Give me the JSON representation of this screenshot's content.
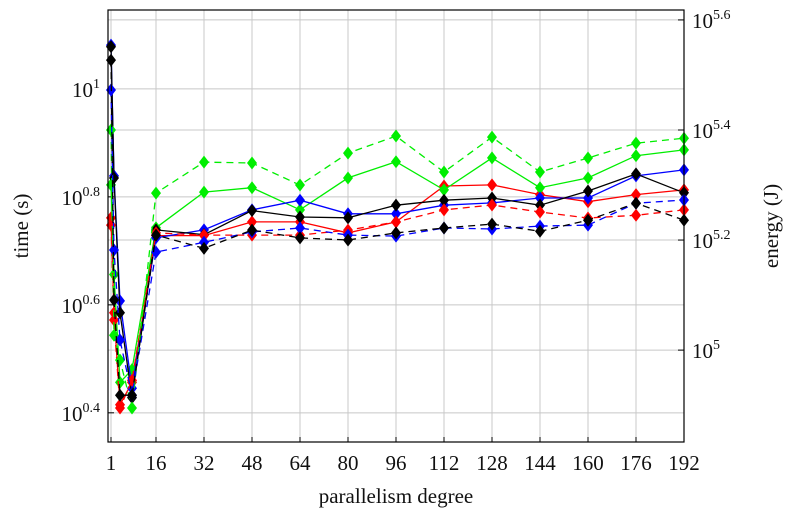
{
  "chart_data": {
    "type": "line",
    "xlabel": "parallelism degree",
    "ylabel": "time (s)",
    "y2label": "energy (J)",
    "x": [
      1,
      2,
      4,
      8,
      16,
      32,
      48,
      64,
      80,
      96,
      112,
      128,
      144,
      160,
      176,
      192
    ],
    "xlim": [
      0,
      192
    ],
    "xticks": [
      1,
      16,
      32,
      48,
      64,
      80,
      96,
      112,
      128,
      144,
      160,
      176,
      192
    ],
    "ylim": [
      2.218,
      14.0
    ],
    "ylog": true,
    "yticks": [
      {
        "value": 2.512,
        "label": "10^0.4"
      },
      {
        "value": 3.981,
        "label": "10^0.6"
      },
      {
        "value": 6.31,
        "label": "10^0.8"
      },
      {
        "value": 10,
        "label": "10^1"
      }
    ],
    "y2lim": [
      68080,
      415000
    ],
    "y2log": true,
    "y2ticks": [
      {
        "value": 100000,
        "label": "10^5"
      },
      {
        "value": 158489,
        "label": "10^5.2"
      },
      {
        "value": 251189,
        "label": "10^5.4"
      },
      {
        "value": 398107,
        "label": "10^5.6"
      }
    ],
    "grid": true,
    "series": [
      {
        "color": "#ff0000",
        "dashed": false,
        "axis": "y",
        "values": [
          5.77,
          3.85,
          2.6,
          2.86,
          5.35,
          5.35,
          5.67,
          5.67,
          5.41,
          5.67,
          6.61,
          6.64,
          6.37,
          6.18,
          6.37,
          6.5
        ]
      },
      {
        "color": "#00ee00",
        "dashed": false,
        "axis": "y",
        "values": [
          6.64,
          4.53,
          2.86,
          3.02,
          5.53,
          6.44,
          6.56,
          5.97,
          6.84,
          7.33,
          6.5,
          7.45,
          6.56,
          6.84,
          7.52,
          7.71
        ]
      },
      {
        "color": "#0000ff",
        "dashed": false,
        "axis": "y",
        "values": [
          12.05,
          6.9,
          4.05,
          2.79,
          5.3,
          5.48,
          5.97,
          6.22,
          5.87,
          5.87,
          6.09,
          6.15,
          6.28,
          6.28,
          6.9,
          7.08
        ]
      },
      {
        "color": "#000000",
        "dashed": false,
        "axis": "y",
        "values": [
          11.97,
          6.84,
          3.85,
          2.68,
          5.48,
          5.37,
          5.95,
          5.79,
          5.77,
          6.09,
          6.22,
          6.28,
          6.09,
          6.47,
          6.96,
          6.42
        ]
      },
      {
        "color": "#ff0000",
        "dashed": true,
        "axis": "y2",
        "values": [
          168700,
          113400,
          78500,
          88100,
          163300,
          161800,
          161800,
          161800,
          165200,
          170900,
          179800,
          183500,
          178200,
          173800,
          175800,
          179800
        ]
      },
      {
        "color": "#00ee00",
        "dashed": true,
        "axis": "y2",
        "values": [
          251200,
          106400,
          95900,
          78500,
          192900,
          219600,
          218800,
          199500,
          228000,
          244900,
          210700,
          243800,
          210700,
          223400,
          237700,
          242700
        ]
      },
      {
        "color": "#0000ff",
        "dashed": true,
        "axis": "y2",
        "values": [
          297000,
          152000,
          104300,
          82800,
          150700,
          157000,
          164000,
          166700,
          161800,
          161100,
          166700,
          166000,
          168000,
          168700,
          184900,
          187400
        ]
      },
      {
        "color": "#000000",
        "dashed": true,
        "axis": "y2",
        "values": [
          336500,
          123300,
          82800,
          82800,
          161800,
          153100,
          165200,
          159900,
          158500,
          163300,
          166700,
          169400,
          164400,
          172200,
          184900,
          172200
        ]
      }
    ]
  }
}
